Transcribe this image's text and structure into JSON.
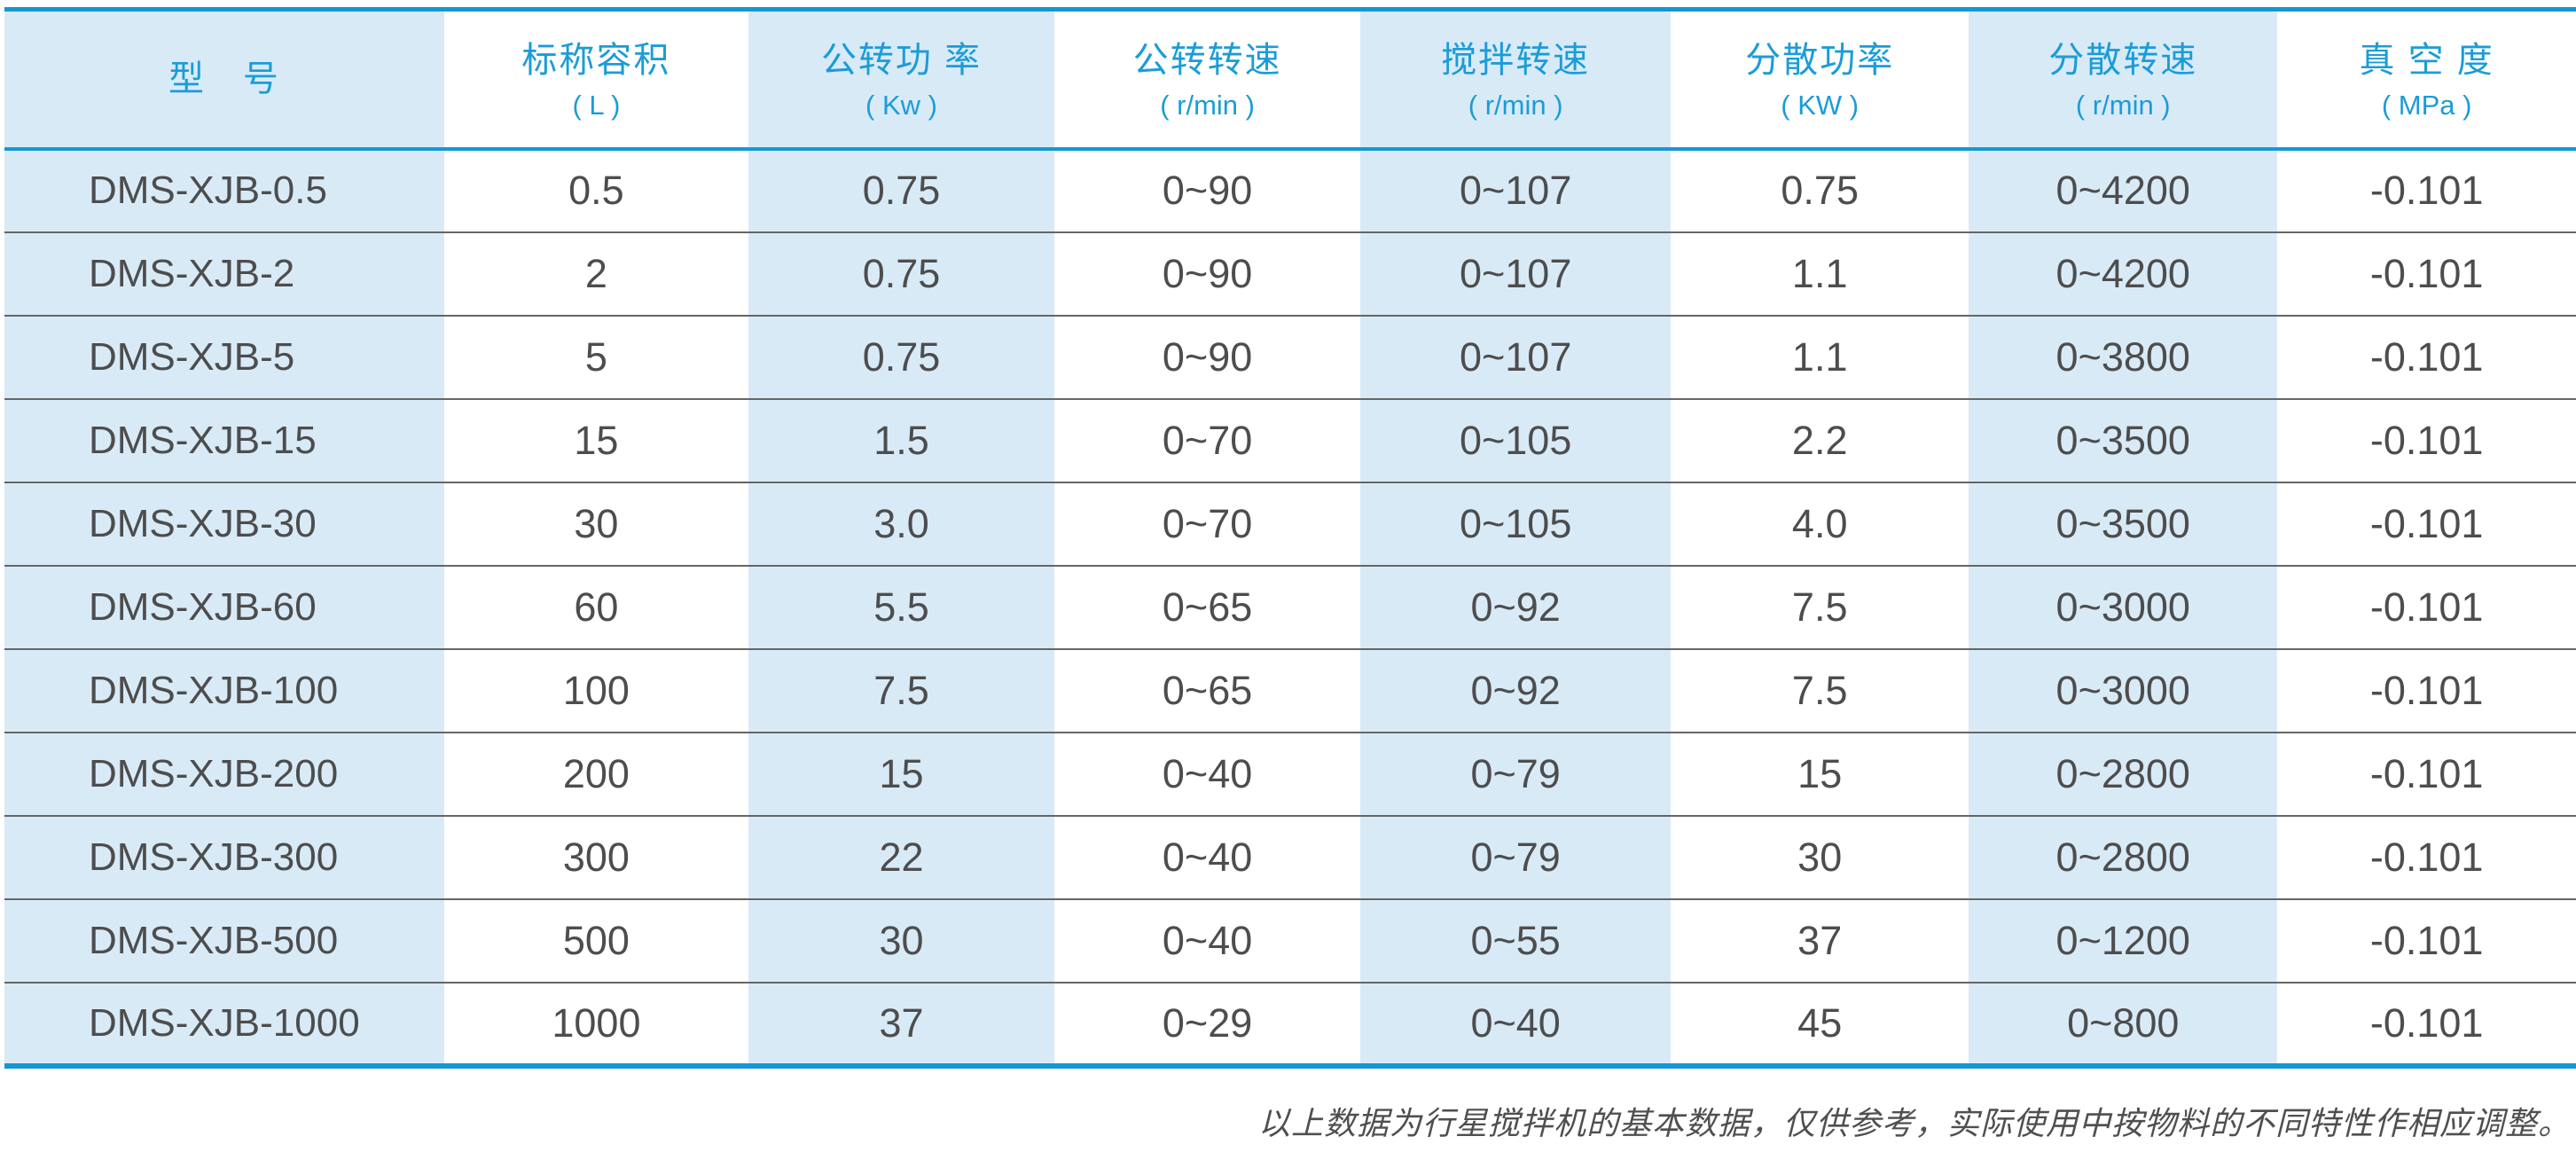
{
  "colors": {
    "accent": "#1697d4",
    "column_stripe": "#d9eaf7",
    "header_text": "#1b9cd8",
    "body_text": "#4d4d4d",
    "row_separator": "#666666",
    "footnote_text": "#4f4f4f"
  },
  "table": {
    "columns": [
      {
        "title": "型　号",
        "unit": ""
      },
      {
        "title": "标称容积",
        "unit": "( L )"
      },
      {
        "title": "公转功 率",
        "unit": "( Kw )"
      },
      {
        "title": "公转转速",
        "unit": "( r/min )"
      },
      {
        "title": "搅拌转速",
        "unit": "( r/min )"
      },
      {
        "title": "分散功率",
        "unit": "( KW )"
      },
      {
        "title": "分散转速",
        "unit": "( r/min )"
      },
      {
        "title": "真 空 度",
        "unit": "( MPa )"
      }
    ],
    "column_widths_pct": [
      17.1,
      11.83,
      11.9,
      11.9,
      12.07,
      11.59,
      12.0,
      11.61
    ],
    "rows": [
      [
        "DMS-XJB-0.5",
        "0.5",
        "0.75",
        "0~90",
        "0~107",
        "0.75",
        "0~4200",
        "-0.101"
      ],
      [
        "DMS-XJB-2",
        "2",
        "0.75",
        "0~90",
        "0~107",
        "1.1",
        "0~4200",
        "-0.101"
      ],
      [
        "DMS-XJB-5",
        "5",
        "0.75",
        "0~90",
        "0~107",
        "1.1",
        "0~3800",
        "-0.101"
      ],
      [
        "DMS-XJB-15",
        "15",
        "1.5",
        "0~70",
        "0~105",
        "2.2",
        "0~3500",
        "-0.101"
      ],
      [
        "DMS-XJB-30",
        "30",
        "3.0",
        "0~70",
        "0~105",
        "4.0",
        "0~3500",
        "-0.101"
      ],
      [
        "DMS-XJB-60",
        "60",
        "5.5",
        "0~65",
        "0~92",
        "7.5",
        "0~3000",
        "-0.101"
      ],
      [
        "DMS-XJB-100",
        "100",
        "7.5",
        "0~65",
        "0~92",
        "7.5",
        "0~3000",
        "-0.101"
      ],
      [
        "DMS-XJB-200",
        "200",
        "15",
        "0~40",
        "0~79",
        "15",
        "0~2800",
        "-0.101"
      ],
      [
        "DMS-XJB-300",
        "300",
        "22",
        "0~40",
        "0~79",
        "30",
        "0~2800",
        "-0.101"
      ],
      [
        "DMS-XJB-500",
        "500",
        "30",
        "0~40",
        "0~55",
        "37",
        "0~1200",
        "-0.101"
      ],
      [
        "DMS-XJB-1000",
        "1000",
        "37",
        "0~29",
        "0~40",
        "45",
        "0~800",
        "-0.101"
      ]
    ],
    "footnote": "以上数据为行星搅拌机的基本数据，仅供参考，实际使用中按物料的不同特性作相应调整。"
  }
}
